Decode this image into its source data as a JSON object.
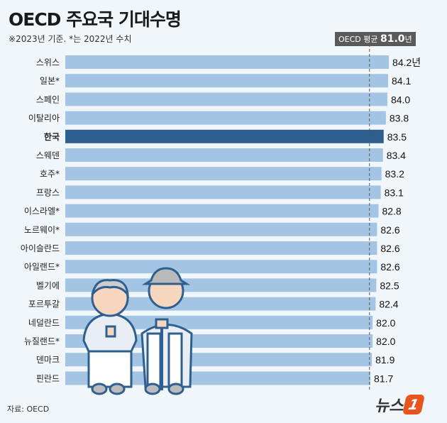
{
  "header": {
    "title": "OECD 주요국 기대수명",
    "subtitle": "※2023년 기준. *는 2022년 수치"
  },
  "average": {
    "label": "OECD 평균",
    "value": "81.0",
    "unit": "년"
  },
  "footer": {
    "source": "자료: OECD",
    "logo": "뉴스1",
    "logo_text": "뉴스",
    "logo_number": "1"
  },
  "colors": {
    "bar": "#a3c5e3",
    "highlight": "#2f5f8f",
    "avg_line": "#555555",
    "logo": "#e8541e"
  },
  "chart_data": {
    "type": "bar",
    "orientation": "horizontal",
    "categories": [
      "스위스",
      "일본*",
      "스페인",
      "이탈리아",
      "한국",
      "스웨덴",
      "호주*",
      "프랑스",
      "이스라엘*",
      "노르웨이*",
      "아이슬란드",
      "아일랜드*",
      "벨기에",
      "포르투갈",
      "네덜란드",
      "뉴질랜드*",
      "덴마크",
      "핀란드"
    ],
    "values": [
      84.2,
      84.1,
      84.0,
      83.8,
      83.5,
      83.4,
      83.2,
      83.1,
      82.8,
      82.6,
      82.6,
      82.6,
      82.5,
      82.4,
      82.0,
      82.0,
      81.9,
      81.7
    ],
    "value_labels": [
      "84.2년",
      "84.1",
      "84.0",
      "83.8",
      "83.5",
      "83.4",
      "83.2",
      "83.1",
      "82.8",
      "82.6",
      "82.6",
      "82.6",
      "82.5",
      "82.4",
      "82.0",
      "82.0",
      "81.9",
      "81.7"
    ],
    "highlight": "한국",
    "reference_line": 81.0,
    "unit": "년",
    "grid": false
  }
}
